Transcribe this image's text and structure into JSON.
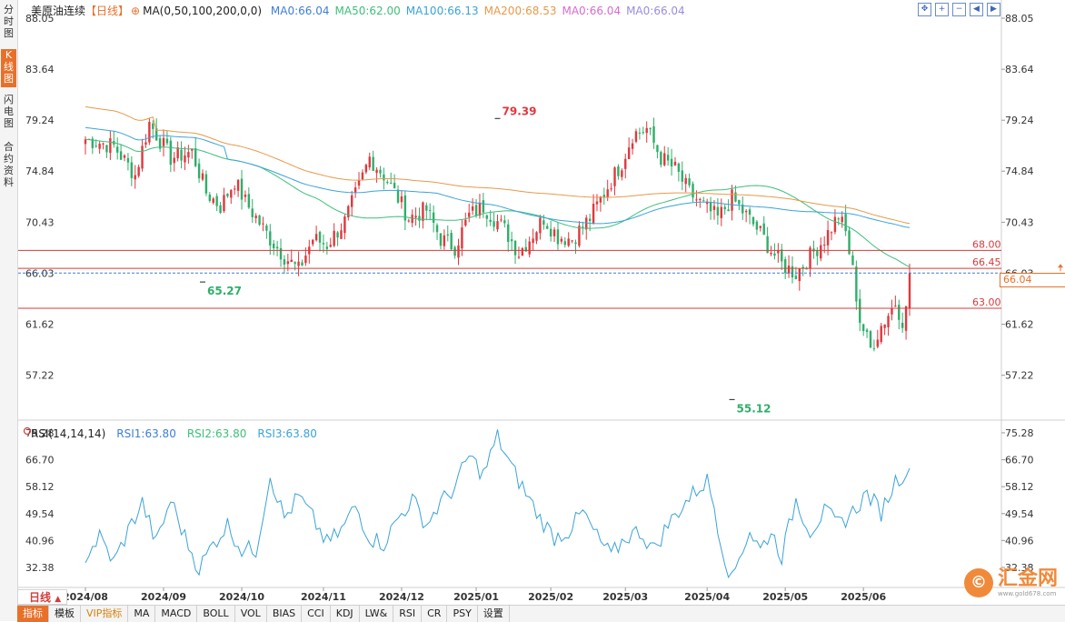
{
  "sidebar": {
    "tabs": [
      {
        "label": "分\n时\n图",
        "active": false
      },
      {
        "label": "K\n线\n图",
        "active": true
      },
      {
        "label": "闪\n电\n图",
        "active": false
      },
      {
        "label": "合\n约\n资\n料",
        "active": false
      }
    ]
  },
  "legend": {
    "name": "美原油连续",
    "period": "【日线】",
    "ma_settings": "MA(0,50,100,200,0,0)",
    "items": [
      {
        "label": "MA0:66.04",
        "color": "#3d7fd6"
      },
      {
        "label": "MA50:62.00",
        "color": "#3dbf7a"
      },
      {
        "label": "MA100:66.13",
        "color": "#3aa3d9"
      },
      {
        "label": "MA200:68.53",
        "color": "#e69a4a"
      },
      {
        "label": "MA0:66.04",
        "color": "#d96bd0"
      },
      {
        "label": "MA0:66.04",
        "color": "#9b8ce0"
      }
    ]
  },
  "rsi_legend": {
    "title": "RSI(14,14,14)",
    "items": [
      {
        "label": "RSI1:63.80",
        "color": "#3d7fd6"
      },
      {
        "label": "RSI2:63.80",
        "color": "#3dbf7a"
      },
      {
        "label": "RSI3:63.80",
        "color": "#3aa3d9"
      }
    ]
  },
  "price_box": "66.04",
  "period_button": "日线",
  "bottom_buttons": [
    "指标",
    "模板",
    "VIP指标",
    "MA",
    "MACD",
    "BOLL",
    "VOL",
    "BIAS",
    "CCI",
    "KDJ",
    "LW&",
    "RSI",
    "CR",
    "PSY",
    "设置"
  ],
  "logo": {
    "mark": "©",
    "text": "汇金网",
    "sub": "www.gold678.com"
  },
  "chart_data": [
    {
      "type": "candlestick",
      "y_ticks": [
        "88.05",
        "83.64",
        "79.24",
        "74.84",
        "70.43",
        "66.03",
        "61.62",
        "57.22"
      ],
      "ylim": [
        53.5,
        88.05
      ],
      "x_ticks": [
        "2024/08",
        "2024/09",
        "2024/10",
        "2024/11",
        "2024/12",
        "2025/01",
        "2025/02",
        "2025/03",
        "2025/04",
        "2025/05",
        "2025/06"
      ],
      "x_tick_index": [
        0,
        22,
        44,
        67,
        89,
        110,
        131,
        152,
        175,
        197,
        219
      ],
      "n_bars": 233,
      "close_anchors": [
        [
          0,
          77.6
        ],
        [
          8,
          77.0
        ],
        [
          14,
          74.5
        ],
        [
          18,
          79.0
        ],
        [
          24,
          76.0
        ],
        [
          30,
          76.5
        ],
        [
          34,
          73.0
        ],
        [
          38,
          71.8
        ],
        [
          42,
          74.0
        ],
        [
          45,
          72.2
        ],
        [
          52,
          69.0
        ],
        [
          56,
          67.5
        ],
        [
          60,
          66.3
        ],
        [
          64,
          69.0
        ],
        [
          68,
          68.5
        ],
        [
          73,
          70.5
        ],
        [
          77,
          73.5
        ],
        [
          80,
          76.0
        ],
        [
          84,
          74.5
        ],
        [
          88,
          72.5
        ],
        [
          91,
          70.8
        ],
        [
          96,
          71.5
        ],
        [
          100,
          69.0
        ],
        [
          104,
          68.3
        ],
        [
          108,
          71.0
        ],
        [
          112,
          71.8
        ],
        [
          118,
          69.8
        ],
        [
          122,
          67.8
        ],
        [
          125,
          69.0
        ],
        [
          129,
          70.8
        ],
        [
          133,
          69.2
        ],
        [
          137,
          69.0
        ],
        [
          142,
          70.8
        ],
        [
          147,
          73.5
        ],
        [
          151,
          75.6
        ],
        [
          154,
          78.0
        ],
        [
          158,
          78.5
        ],
        [
          162,
          76.0
        ],
        [
          166,
          75.0
        ],
        [
          170,
          73.0
        ],
        [
          174,
          71.8
        ],
        [
          178,
          70.8
        ],
        [
          182,
          72.5
        ],
        [
          186,
          71.0
        ],
        [
          190,
          69.5
        ],
        [
          193,
          68.0
        ],
        [
          196,
          66.8
        ],
        [
          200,
          66.0
        ],
        [
          204,
          67.5
        ],
        [
          208,
          69.0
        ],
        [
          212,
          71.0
        ],
        [
          214,
          69.5
        ],
        [
          216,
          66.2
        ],
        [
          218,
          62.0
        ],
        [
          221,
          59.5
        ],
        [
          224,
          61.5
        ],
        [
          228,
          63.5
        ],
        [
          230,
          62.0
        ],
        [
          231,
          62.8
        ],
        [
          232,
          66.04
        ]
      ],
      "extra_bar_shift": 0,
      "annotations": [
        {
          "text": "79.39",
          "index": 116,
          "value": 79.39,
          "kind": "high"
        },
        {
          "text": "65.27",
          "index": 33,
          "value": 65.27,
          "kind": "low"
        },
        {
          "text": "55.12",
          "index": 182,
          "value": 55.12,
          "kind": "low"
        }
      ],
      "hlines": [
        {
          "label": "68.00",
          "value": 68.0,
          "color": "#d23c3c"
        },
        {
          "label": "66.45",
          "value": 66.45,
          "color": "#d23c3c"
        },
        {
          "label": "63.00",
          "value": 63.0,
          "color": "#d23c3c"
        }
      ],
      "current_line": {
        "value": 66.04,
        "color": "#3d7fd6"
      },
      "ma_lines": [
        {
          "name": "MA50",
          "color": "#3dbf7a",
          "period": 50
        },
        {
          "name": "MA100",
          "color": "#3aa3d9",
          "period": 100
        },
        {
          "name": "MA200",
          "color": "#e69a4a",
          "period": 200
        }
      ],
      "colors": {
        "up": "#e0383e",
        "down": "#2fae6a"
      }
    },
    {
      "type": "line",
      "y_ticks": [
        "75.28",
        "66.70",
        "58.12",
        "49.54",
        "40.96",
        "32.38"
      ],
      "ylim": [
        26.0,
        77.0
      ],
      "series": [
        {
          "color": "#3aa3d9",
          "anchors": [
            [
              0,
              36
            ],
            [
              4,
              42
            ],
            [
              8,
              34
            ],
            [
              12,
              44
            ],
            [
              16,
              53
            ],
            [
              20,
              40
            ],
            [
              24,
              54
            ],
            [
              28,
              42
            ],
            [
              32,
              32
            ],
            [
              36,
              40
            ],
            [
              40,
              46
            ],
            [
              44,
              38
            ],
            [
              48,
              38
            ],
            [
              52,
              62
            ],
            [
              56,
              48
            ],
            [
              60,
              55
            ],
            [
              64,
              48
            ],
            [
              68,
              40
            ],
            [
              72,
              44
            ],
            [
              76,
              52
            ],
            [
              80,
              42
            ],
            [
              84,
              40
            ],
            [
              88,
              48
            ],
            [
              92,
              54
            ],
            [
              96,
              46
            ],
            [
              100,
              53
            ],
            [
              104,
              58
            ],
            [
              108,
              68
            ],
            [
              112,
              62
            ],
            [
              116,
              74
            ],
            [
              120,
              64
            ],
            [
              124,
              56
            ],
            [
              128,
              48
            ],
            [
              132,
              42
            ],
            [
              136,
              44
            ],
            [
              140,
              50
            ],
            [
              144,
              42
            ],
            [
              148,
              36
            ],
            [
              152,
              42
            ],
            [
              156,
              44
            ],
            [
              160,
              38
            ],
            [
              164,
              46
            ],
            [
              168,
              52
            ],
            [
              172,
              57
            ],
            [
              175,
              60
            ],
            [
              177,
              52
            ],
            [
              179,
              40
            ],
            [
              182,
              28
            ],
            [
              184,
              36
            ],
            [
              187,
              44
            ],
            [
              190,
              38
            ],
            [
              193,
              44
            ],
            [
              196,
              36
            ],
            [
              200,
              54
            ],
            [
              204,
              44
            ],
            [
              208,
              50
            ],
            [
              212,
              46
            ],
            [
              216,
              50
            ],
            [
              220,
              56
            ],
            [
              224,
              50
            ],
            [
              228,
              60
            ],
            [
              232,
              64
            ]
          ]
        }
      ]
    }
  ]
}
